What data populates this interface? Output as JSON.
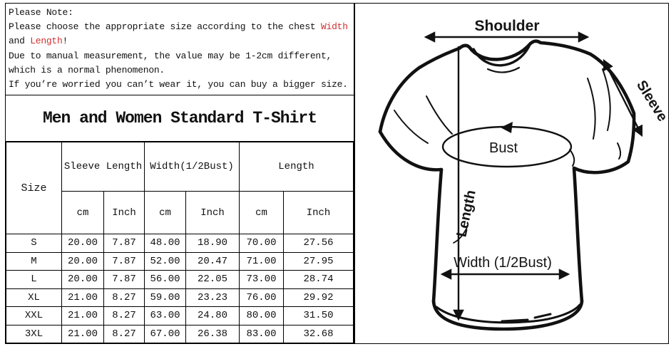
{
  "note": {
    "heading": "Please Note:",
    "line2_pre": "Please choose the appropriate size according to the chest ",
    "line2_red": "Width",
    "line3_pre": "and ",
    "line3_red": "Length",
    "line3_post": "!",
    "line4": "Due to manual measurement, the value may be 1-2cm different,",
    "line5": "which is a normal phenomenon.",
    "line6": "If you’re worried you can’t wear it, you can buy a bigger size."
  },
  "chart_data": {
    "type": "table",
    "title": "Men and Women Standard T-Shirt",
    "corner_header": "Size",
    "column_groups": [
      "Sleeve Length",
      "Width(1/2Bust)",
      "Length"
    ],
    "unit_row": [
      "cm",
      "Inch",
      "cm",
      "Inch",
      "cm",
      "Inch"
    ],
    "columns": [
      "Size",
      "Sleeve Length cm",
      "Sleeve Length Inch",
      "Width(1/2Bust) cm",
      "Width(1/2Bust) Inch",
      "Length cm",
      "Length Inch"
    ],
    "rows": [
      [
        "S",
        "20.00",
        "7.87",
        "48.00",
        "18.90",
        "70.00",
        "27.56"
      ],
      [
        "M",
        "20.00",
        "7.87",
        "52.00",
        "20.47",
        "71.00",
        "27.95"
      ],
      [
        "L",
        "20.00",
        "7.87",
        "56.00",
        "22.05",
        "73.00",
        "28.74"
      ],
      [
        "XL",
        "21.00",
        "8.27",
        "59.00",
        "23.23",
        "76.00",
        "29.92"
      ],
      [
        "XXL",
        "21.00",
        "8.27",
        "63.00",
        "24.80",
        "80.00",
        "31.50"
      ],
      [
        "3XL",
        "21.00",
        "8.27",
        "67.00",
        "26.38",
        "83.00",
        "32.68"
      ]
    ]
  },
  "diagram": {
    "shoulder_label": "Shoulder",
    "sleeve_label": "Sleeve",
    "bust_label": "Bust",
    "length_label": "Length",
    "width_label": "Width (1/2Bust)"
  },
  "colors": {
    "highlight_red": "#d03030",
    "ink": "#111111"
  }
}
